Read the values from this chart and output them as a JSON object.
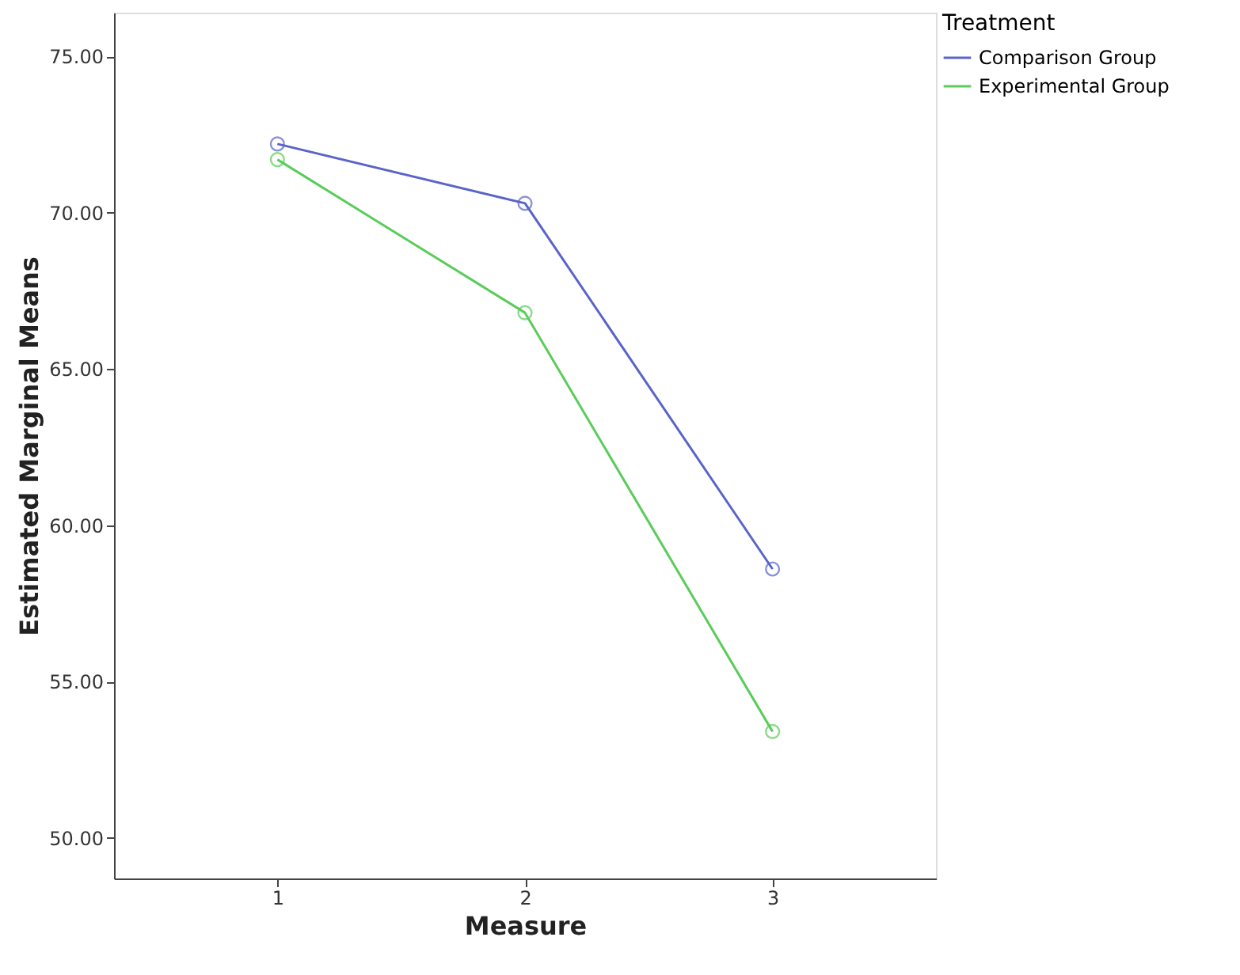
{
  "chart_data": {
    "type": "line",
    "xlabel": "Measure",
    "ylabel": "Estimated Marginal Means",
    "legend_title": "Treatment",
    "categories": [
      "1",
      "2",
      "3"
    ],
    "series": [
      {
        "name": "Comparison Group",
        "color": "#5a64c8",
        "values": [
          72.2,
          70.3,
          58.6
        ]
      },
      {
        "name": "Experimental Group",
        "color": "#5acc5a",
        "values": [
          71.7,
          66.8,
          53.4
        ]
      }
    ],
    "ylim": [
      48.7,
      76.4
    ],
    "yticks": [
      {
        "value": 50,
        "label": "50.00"
      },
      {
        "value": 55,
        "label": "55.00"
      },
      {
        "value": 60,
        "label": "60.00"
      },
      {
        "value": 65,
        "label": "65.00"
      },
      {
        "value": 70,
        "label": "70.00"
      },
      {
        "value": 75,
        "label": "75.00"
      }
    ],
    "grid": false,
    "legend": "top right",
    "marker": "circle",
    "line_style": "solid"
  }
}
